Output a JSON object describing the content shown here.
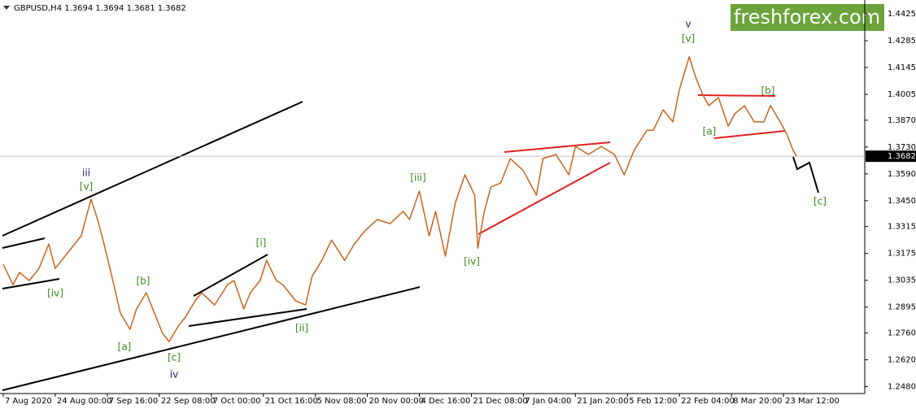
{
  "chart_data": {
    "type": "line",
    "symbol_info": "GBPUSD,H4  1.3694 1.3694 1.3681 1.3682",
    "watermark": "freshforex.com",
    "x": [
      0,
      3,
      5,
      8,
      11,
      14,
      16,
      20,
      24,
      27,
      29,
      31,
      34,
      36,
      39,
      41,
      44,
      46,
      49,
      51,
      54,
      56,
      59,
      61,
      65,
      69,
      71,
      74,
      76,
      79,
      81,
      84,
      86,
      90,
      93,
      95,
      98,
      101,
      105,
      108,
      111,
      115,
      119,
      123,
      125,
      128,
      131,
      133,
      136,
      139,
      142,
      145,
      146,
      148,
      150,
      153,
      156,
      160,
      164,
      166,
      170,
      174,
      176,
      180,
      184,
      188,
      191,
      194,
      198,
      200,
      203,
      206,
      208,
      211,
      213,
      215,
      217,
      220,
      223,
      225,
      228,
      231,
      234,
      236,
      239,
      241,
      243,
      244
    ],
    "series": [
      {
        "name": "GBPUSD",
        "color": "#c8641e",
        "values": [
          1.3118,
          1.3012,
          1.3076,
          1.3033,
          1.3097,
          1.3224,
          1.3097,
          1.3182,
          1.3267,
          1.3458,
          1.3352,
          1.3224,
          1.3012,
          1.2864,
          1.2779,
          1.2885,
          1.297,
          1.2885,
          1.2758,
          1.2715,
          1.28,
          1.2842,
          1.2927,
          1.297,
          1.2906,
          1.3012,
          1.3033,
          1.2885,
          1.297,
          1.3033,
          1.3139,
          1.3033,
          1.3012,
          1.2927,
          1.2906,
          1.3055,
          1.3139,
          1.3245,
          1.3139,
          1.3224,
          1.3288,
          1.3352,
          1.333,
          1.3394,
          1.3352,
          1.35,
          1.3267,
          1.3394,
          1.3161,
          1.3436,
          1.3585,
          1.3479,
          1.3203,
          1.3394,
          1.3521,
          1.3542,
          1.367,
          1.3606,
          1.3479,
          1.367,
          1.3691,
          1.3585,
          1.3733,
          1.3691,
          1.3733,
          1.3691,
          1.3585,
          1.3712,
          1.3818,
          1.3818,
          1.3924,
          1.3861,
          1.403,
          1.42,
          1.4094,
          1.4009,
          1.3946,
          1.3988,
          1.3839,
          1.3903,
          1.3946,
          1.3861,
          1.3861,
          1.3946,
          1.3861,
          1.3797,
          1.3712,
          1.3682
        ]
      }
    ],
    "current_price": 1.3682,
    "xlim": [
      -1,
      265
    ],
    "xticks": [
      {
        "value": 0,
        "label": "7 Aug 2020"
      },
      {
        "value": 16,
        "label": "24 Aug 00:00"
      },
      {
        "value": 32,
        "label": "7 Sep 16:00"
      },
      {
        "value": 48,
        "label": "22 Sep 08:00"
      },
      {
        "value": 64,
        "label": "7 Oct 00:00"
      },
      {
        "value": 80,
        "label": "21 Oct 16:00"
      },
      {
        "value": 96,
        "label": "5 Nov 08:00"
      },
      {
        "value": 112,
        "label": "20 Nov 00:00"
      },
      {
        "value": 128,
        "label": "4 Dec 16:00"
      },
      {
        "value": 144,
        "label": "21 Dec 08:00"
      },
      {
        "value": 160,
        "label": "7 Jan 04:00"
      },
      {
        "value": 176,
        "label": "21 Jan 20:00"
      },
      {
        "value": 192,
        "label": "5 Feb 12:00"
      },
      {
        "value": 208,
        "label": "22 Feb 04:00"
      },
      {
        "value": 224,
        "label": "8 Mar 20:00"
      },
      {
        "value": 240,
        "label": "23 Mar 12:00"
      }
    ],
    "ylim": [
      1.2444,
      1.4497
    ],
    "yticks": [
      1.4425,
      1.4285,
      1.4145,
      1.4005,
      {
        "value": 1.387,
        "label": "1.3870"
      },
      {
        "value": 1.373,
        "label": "1.3730"
      },
      {
        "value": 1.359,
        "label": "1.3590"
      },
      {
        "value": 1.345,
        "label": "1.3450"
      },
      1.3315,
      1.3175,
      1.3035,
      1.2895,
      {
        "value": 1.276,
        "label": "1.2760"
      },
      {
        "value": 1.262,
        "label": "1.2620"
      },
      {
        "value": 1.248,
        "label": "1.2480"
      }
    ],
    "annotations": [
      "iii",
      "[v]",
      "[iv]",
      "[b]",
      "[a]",
      "[c]",
      "iv",
      "[i]",
      "[ii]",
      "[iii]",
      "[iv]",
      "v",
      "[v]",
      "[a]",
      "[b]",
      "[c]"
    ]
  }
}
